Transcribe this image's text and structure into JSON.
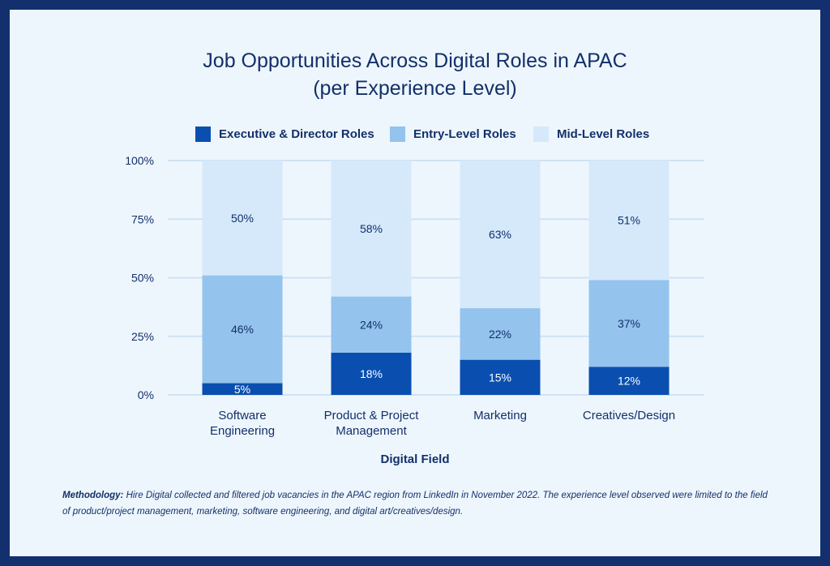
{
  "chart_data": {
    "type": "bar",
    "stacked": true,
    "title_line1": "Job Opportunities Across Digital Roles in APAC",
    "title_line2": "(per Experience Level)",
    "xlabel": "Digital Field",
    "ylabel": "",
    "ylim": [
      0,
      100
    ],
    "yticks": [
      "0%",
      "25%",
      "50%",
      "75%",
      "100%"
    ],
    "ytick_values": [
      0,
      25,
      50,
      75,
      100
    ],
    "grid": true,
    "legend_position": "top",
    "categories": [
      [
        "Software",
        "Engineering"
      ],
      [
        "Product & Project",
        "Management"
      ],
      [
        "Marketing"
      ],
      [
        "Creatives/Design"
      ]
    ],
    "series": [
      {
        "name": "Executive & Director Roles",
        "color": "#0a4fb0",
        "label_color": "#ffffff",
        "values": [
          5,
          18,
          15,
          12
        ],
        "labels": [
          "5%",
          "18%",
          "15%",
          "12%"
        ]
      },
      {
        "name": "Entry-Level Roles",
        "color": "#94c3ee",
        "label_color": "#12306a",
        "values": [
          46,
          24,
          22,
          37
        ],
        "labels": [
          "46%",
          "24%",
          "22%",
          "37%"
        ]
      },
      {
        "name": "Mid-Level Roles",
        "color": "#d5e9fb",
        "label_color": "#12306a",
        "values": [
          50,
          58,
          63,
          51
        ],
        "labels": [
          "50%",
          "58%",
          "63%",
          "51%"
        ]
      }
    ]
  },
  "methodology": {
    "label": "Methodology:",
    "text": " Hire Digital collected and filtered job vacancies in the APAC region from LinkedIn in November 2022. The experience level observed were limited to the field of product/project management, marketing, software engineering, and digital art/creatives/design."
  },
  "colors": {
    "background": "#142f6e",
    "card": "#eef6fd",
    "grid": "#cfe2f4",
    "text": "#12306a"
  }
}
